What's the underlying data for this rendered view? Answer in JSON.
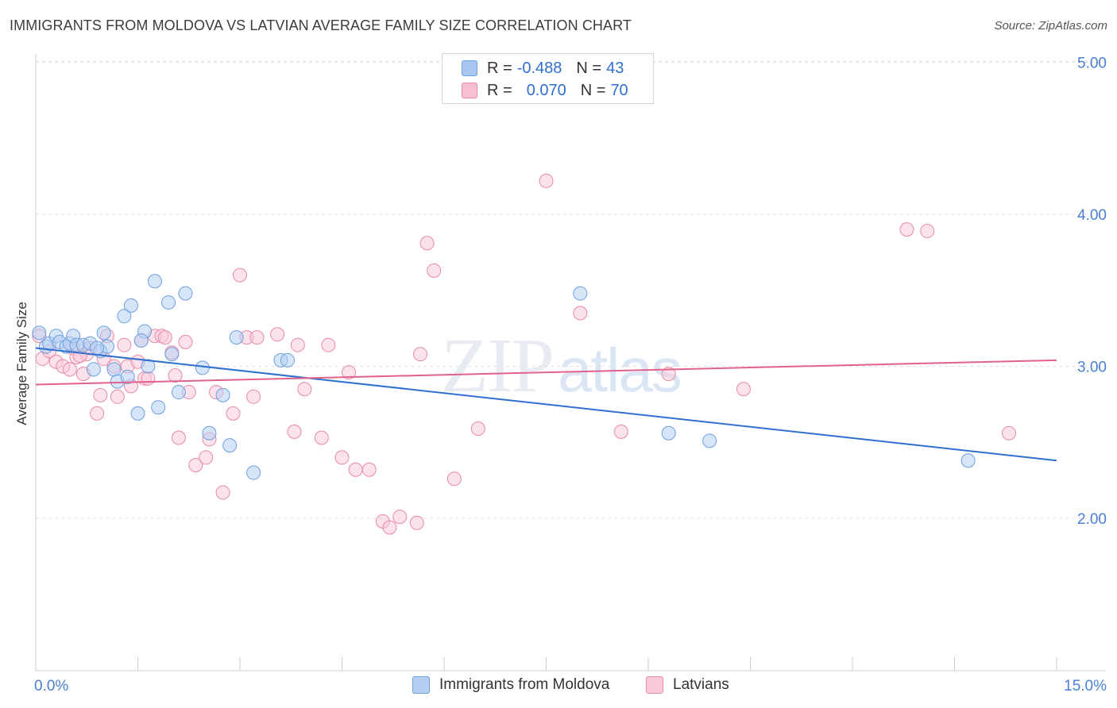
{
  "title": "IMMIGRANTS FROM MOLDOVA VS LATVIAN AVERAGE FAMILY SIZE CORRELATION CHART",
  "source": "Source: ZipAtlas.com",
  "watermark": {
    "zip": "ZIP",
    "atlas": "atlas"
  },
  "legend": {
    "rows": [
      {
        "r_label": "R =",
        "r_value": "-0.488",
        "n_label": "N =",
        "n_value": "43",
        "color": "#a8c6f0",
        "border": "#6e9fe0"
      },
      {
        "r_label": "R =",
        "r_value": "0.070",
        "n_label": "N =",
        "n_value": "70",
        "color": "#f7bfd0",
        "border": "#e88aa8"
      }
    ]
  },
  "bottom_legend": [
    {
      "label": "Immigrants from Moldova",
      "color": "#b5cff3",
      "border": "#6e9fe0"
    },
    {
      "label": "Latvians",
      "color": "#f9cad8",
      "border": "#e88aa8"
    }
  ],
  "chart_data": {
    "type": "scatter",
    "title": "IMMIGRANTS FROM MOLDOVA VS LATVIAN AVERAGE FAMILY SIZE CORRELATION CHART",
    "xlabel": "",
    "ylabel": "Average Family Size",
    "xlim": [
      0,
      15
    ],
    "ylim": [
      1.0,
      5.0
    ],
    "x_tick_labels": [
      "0.0%",
      "15.0%"
    ],
    "y_ticks": [
      2.0,
      3.0,
      4.0,
      5.0
    ],
    "y_tick_labels": [
      "2.00",
      "3.00",
      "4.00",
      "5.00"
    ],
    "grid": true,
    "legend_position": "top-center",
    "series": [
      {
        "name": "Immigrants from Moldova",
        "color": "#6e9fe0",
        "fill": "#b5cff3",
        "trend_color": "#2f6fd0",
        "trend": {
          "x": [
            0,
            15
          ],
          "y": [
            3.12,
            2.38
          ]
        },
        "points": [
          [
            0.05,
            3.22
          ],
          [
            0.15,
            3.13
          ],
          [
            0.2,
            3.15
          ],
          [
            0.3,
            3.2
          ],
          [
            0.35,
            3.16
          ],
          [
            0.45,
            3.13
          ],
          [
            0.5,
            3.15
          ],
          [
            0.55,
            3.2
          ],
          [
            0.6,
            3.14
          ],
          [
            0.7,
            3.14
          ],
          [
            0.8,
            3.15
          ],
          [
            0.85,
            2.98
          ],
          [
            0.95,
            3.1
          ],
          [
            1.0,
            3.22
          ],
          [
            1.05,
            3.13
          ],
          [
            1.15,
            2.98
          ],
          [
            1.2,
            2.9
          ],
          [
            1.3,
            3.33
          ],
          [
            1.35,
            2.93
          ],
          [
            1.4,
            3.4
          ],
          [
            1.5,
            2.69
          ],
          [
            1.6,
            3.23
          ],
          [
            1.65,
            3.0
          ],
          [
            1.75,
            3.56
          ],
          [
            1.8,
            2.73
          ],
          [
            1.95,
            3.42
          ],
          [
            2.0,
            3.08
          ],
          [
            2.1,
            2.83
          ],
          [
            2.2,
            3.48
          ],
          [
            2.45,
            2.99
          ],
          [
            2.55,
            2.56
          ],
          [
            2.75,
            2.81
          ],
          [
            2.85,
            2.48
          ],
          [
            2.95,
            3.19
          ],
          [
            3.2,
            2.3
          ],
          [
            3.6,
            3.04
          ],
          [
            3.7,
            3.04
          ],
          [
            8.0,
            3.48
          ],
          [
            9.3,
            2.56
          ],
          [
            9.9,
            2.51
          ],
          [
            13.7,
            2.38
          ],
          [
            1.55,
            3.17
          ],
          [
            0.9,
            3.12
          ]
        ]
      },
      {
        "name": "Latvians",
        "color": "#e88aa8",
        "fill": "#f9cad8",
        "trend_color": "#e0628d",
        "trend": {
          "x": [
            0,
            15
          ],
          "y": [
            2.88,
            3.04
          ]
        },
        "points": [
          [
            0.05,
            3.2
          ],
          [
            0.1,
            3.05
          ],
          [
            0.2,
            3.1
          ],
          [
            0.3,
            3.03
          ],
          [
            0.4,
            3.0
          ],
          [
            0.5,
            2.98
          ],
          [
            0.55,
            3.12
          ],
          [
            0.6,
            3.06
          ],
          [
            0.7,
            2.95
          ],
          [
            0.75,
            3.08
          ],
          [
            0.8,
            3.12
          ],
          [
            0.9,
            2.69
          ],
          [
            0.95,
            2.81
          ],
          [
            1.0,
            3.05
          ],
          [
            1.05,
            3.2
          ],
          [
            1.15,
            3.0
          ],
          [
            1.2,
            2.8
          ],
          [
            1.3,
            3.14
          ],
          [
            1.35,
            3.0
          ],
          [
            1.4,
            2.87
          ],
          [
            1.5,
            3.03
          ],
          [
            1.55,
            3.17
          ],
          [
            1.6,
            2.92
          ],
          [
            1.65,
            2.92
          ],
          [
            1.75,
            3.2
          ],
          [
            1.85,
            3.2
          ],
          [
            2.0,
            3.09
          ],
          [
            2.05,
            2.94
          ],
          [
            2.1,
            2.53
          ],
          [
            2.2,
            3.16
          ],
          [
            2.25,
            2.83
          ],
          [
            2.35,
            2.35
          ],
          [
            2.5,
            2.4
          ],
          [
            2.55,
            2.52
          ],
          [
            2.65,
            2.83
          ],
          [
            2.75,
            2.17
          ],
          [
            2.9,
            2.69
          ],
          [
            3.0,
            3.6
          ],
          [
            3.1,
            3.19
          ],
          [
            3.2,
            2.8
          ],
          [
            3.25,
            3.19
          ],
          [
            3.55,
            3.21
          ],
          [
            3.8,
            2.57
          ],
          [
            3.85,
            3.14
          ],
          [
            3.95,
            2.85
          ],
          [
            4.2,
            2.53
          ],
          [
            4.3,
            3.14
          ],
          [
            4.5,
            2.4
          ],
          [
            4.6,
            2.96
          ],
          [
            4.7,
            2.32
          ],
          [
            4.9,
            2.32
          ],
          [
            5.1,
            1.98
          ],
          [
            5.2,
            1.94
          ],
          [
            5.35,
            2.01
          ],
          [
            5.6,
            1.97
          ],
          [
            5.65,
            3.08
          ],
          [
            5.75,
            3.81
          ],
          [
            5.85,
            3.63
          ],
          [
            6.15,
            2.26
          ],
          [
            6.5,
            2.59
          ],
          [
            7.5,
            4.22
          ],
          [
            8.0,
            3.35
          ],
          [
            8.6,
            2.57
          ],
          [
            9.3,
            2.95
          ],
          [
            10.4,
            2.85
          ],
          [
            12.8,
            3.9
          ],
          [
            13.1,
            3.89
          ],
          [
            14.3,
            2.56
          ],
          [
            1.9,
            3.19
          ],
          [
            0.65,
            3.07
          ]
        ]
      }
    ]
  }
}
